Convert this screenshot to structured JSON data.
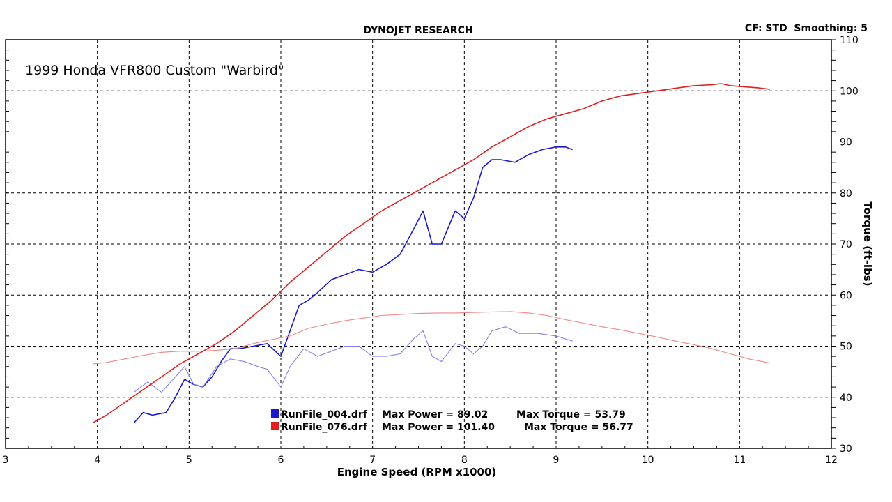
{
  "chart_data": {
    "type": "line",
    "title": "DYNOJET RESEARCH",
    "settings": "CF: STD  Smoothing: 5",
    "annotation": "1999 Honda VFR800 Custom \"Warbird\"",
    "xlabel": "Engine Speed (RPM x1000)",
    "ylabel": "Torque (ft-lbs)",
    "xlim": [
      3,
      12
    ],
    "ylim": [
      30,
      110
    ],
    "x_ticks": [
      3,
      4,
      5,
      6,
      7,
      8,
      9,
      10,
      11,
      12
    ],
    "y_ticks": [
      30,
      40,
      50,
      60,
      70,
      80,
      90,
      100,
      110
    ],
    "grid": true,
    "legend": [
      {
        "color": "#1a1acc",
        "file": "RunFile_004.drf",
        "power_text": "Max Power = 89.02",
        "torque_text": "Max Torque = 53.79"
      },
      {
        "color": "#e02020",
        "file": "RunFile_076.drf",
        "power_text": "Max Power = 101.40",
        "torque_text": "Max Torque = 56.77"
      }
    ],
    "series": [
      {
        "color": "#1a1acc",
        "kind": "power",
        "x": [
          4.4,
          4.5,
          4.6,
          4.75,
          4.85,
          4.95,
          5.05,
          5.15,
          5.25,
          5.35,
          5.45,
          5.55,
          5.7,
          5.85,
          6.0,
          6.1,
          6.2,
          6.3,
          6.4,
          6.55,
          6.7,
          6.85,
          7.0,
          7.15,
          7.3,
          7.45,
          7.55,
          7.65,
          7.75,
          7.9,
          8.0,
          8.1,
          8.2,
          8.3,
          8.4,
          8.55,
          8.7,
          8.85,
          9.0,
          9.1,
          9.18
        ],
        "y": [
          35,
          37,
          36.5,
          37,
          40,
          43.5,
          42.5,
          42,
          44,
          47,
          49.5,
          49.5,
          50,
          50.5,
          48,
          53,
          58,
          59,
          60.5,
          63,
          64,
          65,
          64.5,
          66,
          68,
          73,
          76.5,
          70,
          70,
          76.5,
          75,
          79,
          85,
          86.5,
          86.5,
          86,
          87.5,
          88.5,
          89.02,
          89,
          88.5
        ]
      },
      {
        "color": "#8080ee",
        "kind": "torque",
        "x": [
          4.4,
          4.55,
          4.7,
          4.85,
          4.95,
          5.05,
          5.15,
          5.3,
          5.45,
          5.6,
          5.75,
          5.85,
          6.0,
          6.1,
          6.25,
          6.4,
          6.55,
          6.7,
          6.85,
          7.0,
          7.15,
          7.3,
          7.45,
          7.55,
          7.65,
          7.75,
          7.9,
          8.0,
          8.1,
          8.2,
          8.3,
          8.45,
          8.6,
          8.8,
          9.0,
          9.18
        ],
        "y": [
          41,
          43,
          41,
          44,
          46,
          42.5,
          42,
          46,
          47.5,
          47,
          46,
          45.5,
          42,
          46,
          49.5,
          48,
          49,
          50,
          50,
          48,
          48,
          48.5,
          51.5,
          53,
          48,
          47,
          50.5,
          50,
          48.5,
          50,
          53,
          53.79,
          52.5,
          52.5,
          52,
          51
        ]
      },
      {
        "color": "#e02020",
        "kind": "power",
        "x": [
          3.95,
          4.1,
          4.3,
          4.5,
          4.7,
          4.9,
          5.1,
          5.3,
          5.5,
          5.7,
          5.9,
          6.1,
          6.3,
          6.5,
          6.7,
          6.9,
          7.1,
          7.3,
          7.5,
          7.7,
          7.9,
          8.1,
          8.3,
          8.5,
          8.7,
          8.9,
          9.1,
          9.3,
          9.5,
          9.7,
          9.9,
          10.1,
          10.3,
          10.5,
          10.7,
          10.8,
          10.9,
          11.05,
          11.2,
          11.33
        ],
        "y": [
          35,
          36.5,
          39,
          41.5,
          44,
          46.5,
          48.5,
          50.5,
          53,
          56,
          59,
          62.5,
          65.5,
          68.5,
          71.5,
          74,
          76.5,
          78.5,
          80.5,
          82.5,
          84.5,
          86.5,
          89,
          91,
          93,
          94.5,
          95.5,
          96.5,
          98,
          99,
          99.5,
          100,
          100.5,
          101,
          101.2,
          101.4,
          101,
          100.8,
          100.6,
          100.3
        ]
      },
      {
        "color": "#ee8888",
        "kind": "torque",
        "x": [
          3.95,
          4.1,
          4.3,
          4.5,
          4.7,
          4.9,
          5.1,
          5.3,
          5.5,
          5.7,
          5.9,
          6.1,
          6.3,
          6.5,
          6.7,
          6.9,
          7.1,
          7.3,
          7.5,
          7.7,
          7.9,
          8.1,
          8.3,
          8.5,
          8.7,
          8.9,
          9.1,
          9.3,
          9.5,
          9.7,
          9.9,
          10.1,
          10.3,
          10.5,
          10.7,
          10.9,
          11.1,
          11.33
        ],
        "y": [
          46.5,
          46.8,
          47.5,
          48.2,
          48.8,
          49,
          49,
          49.2,
          49.5,
          50.5,
          51.3,
          52,
          53.5,
          54.3,
          55,
          55.5,
          56,
          56.2,
          56.4,
          56.5,
          56.5,
          56.6,
          56.7,
          56.77,
          56.5,
          56,
          55.2,
          54.5,
          53.8,
          53.2,
          52.5,
          51.8,
          51,
          50.3,
          49.5,
          48.5,
          47.5,
          46.7
        ]
      }
    ]
  }
}
